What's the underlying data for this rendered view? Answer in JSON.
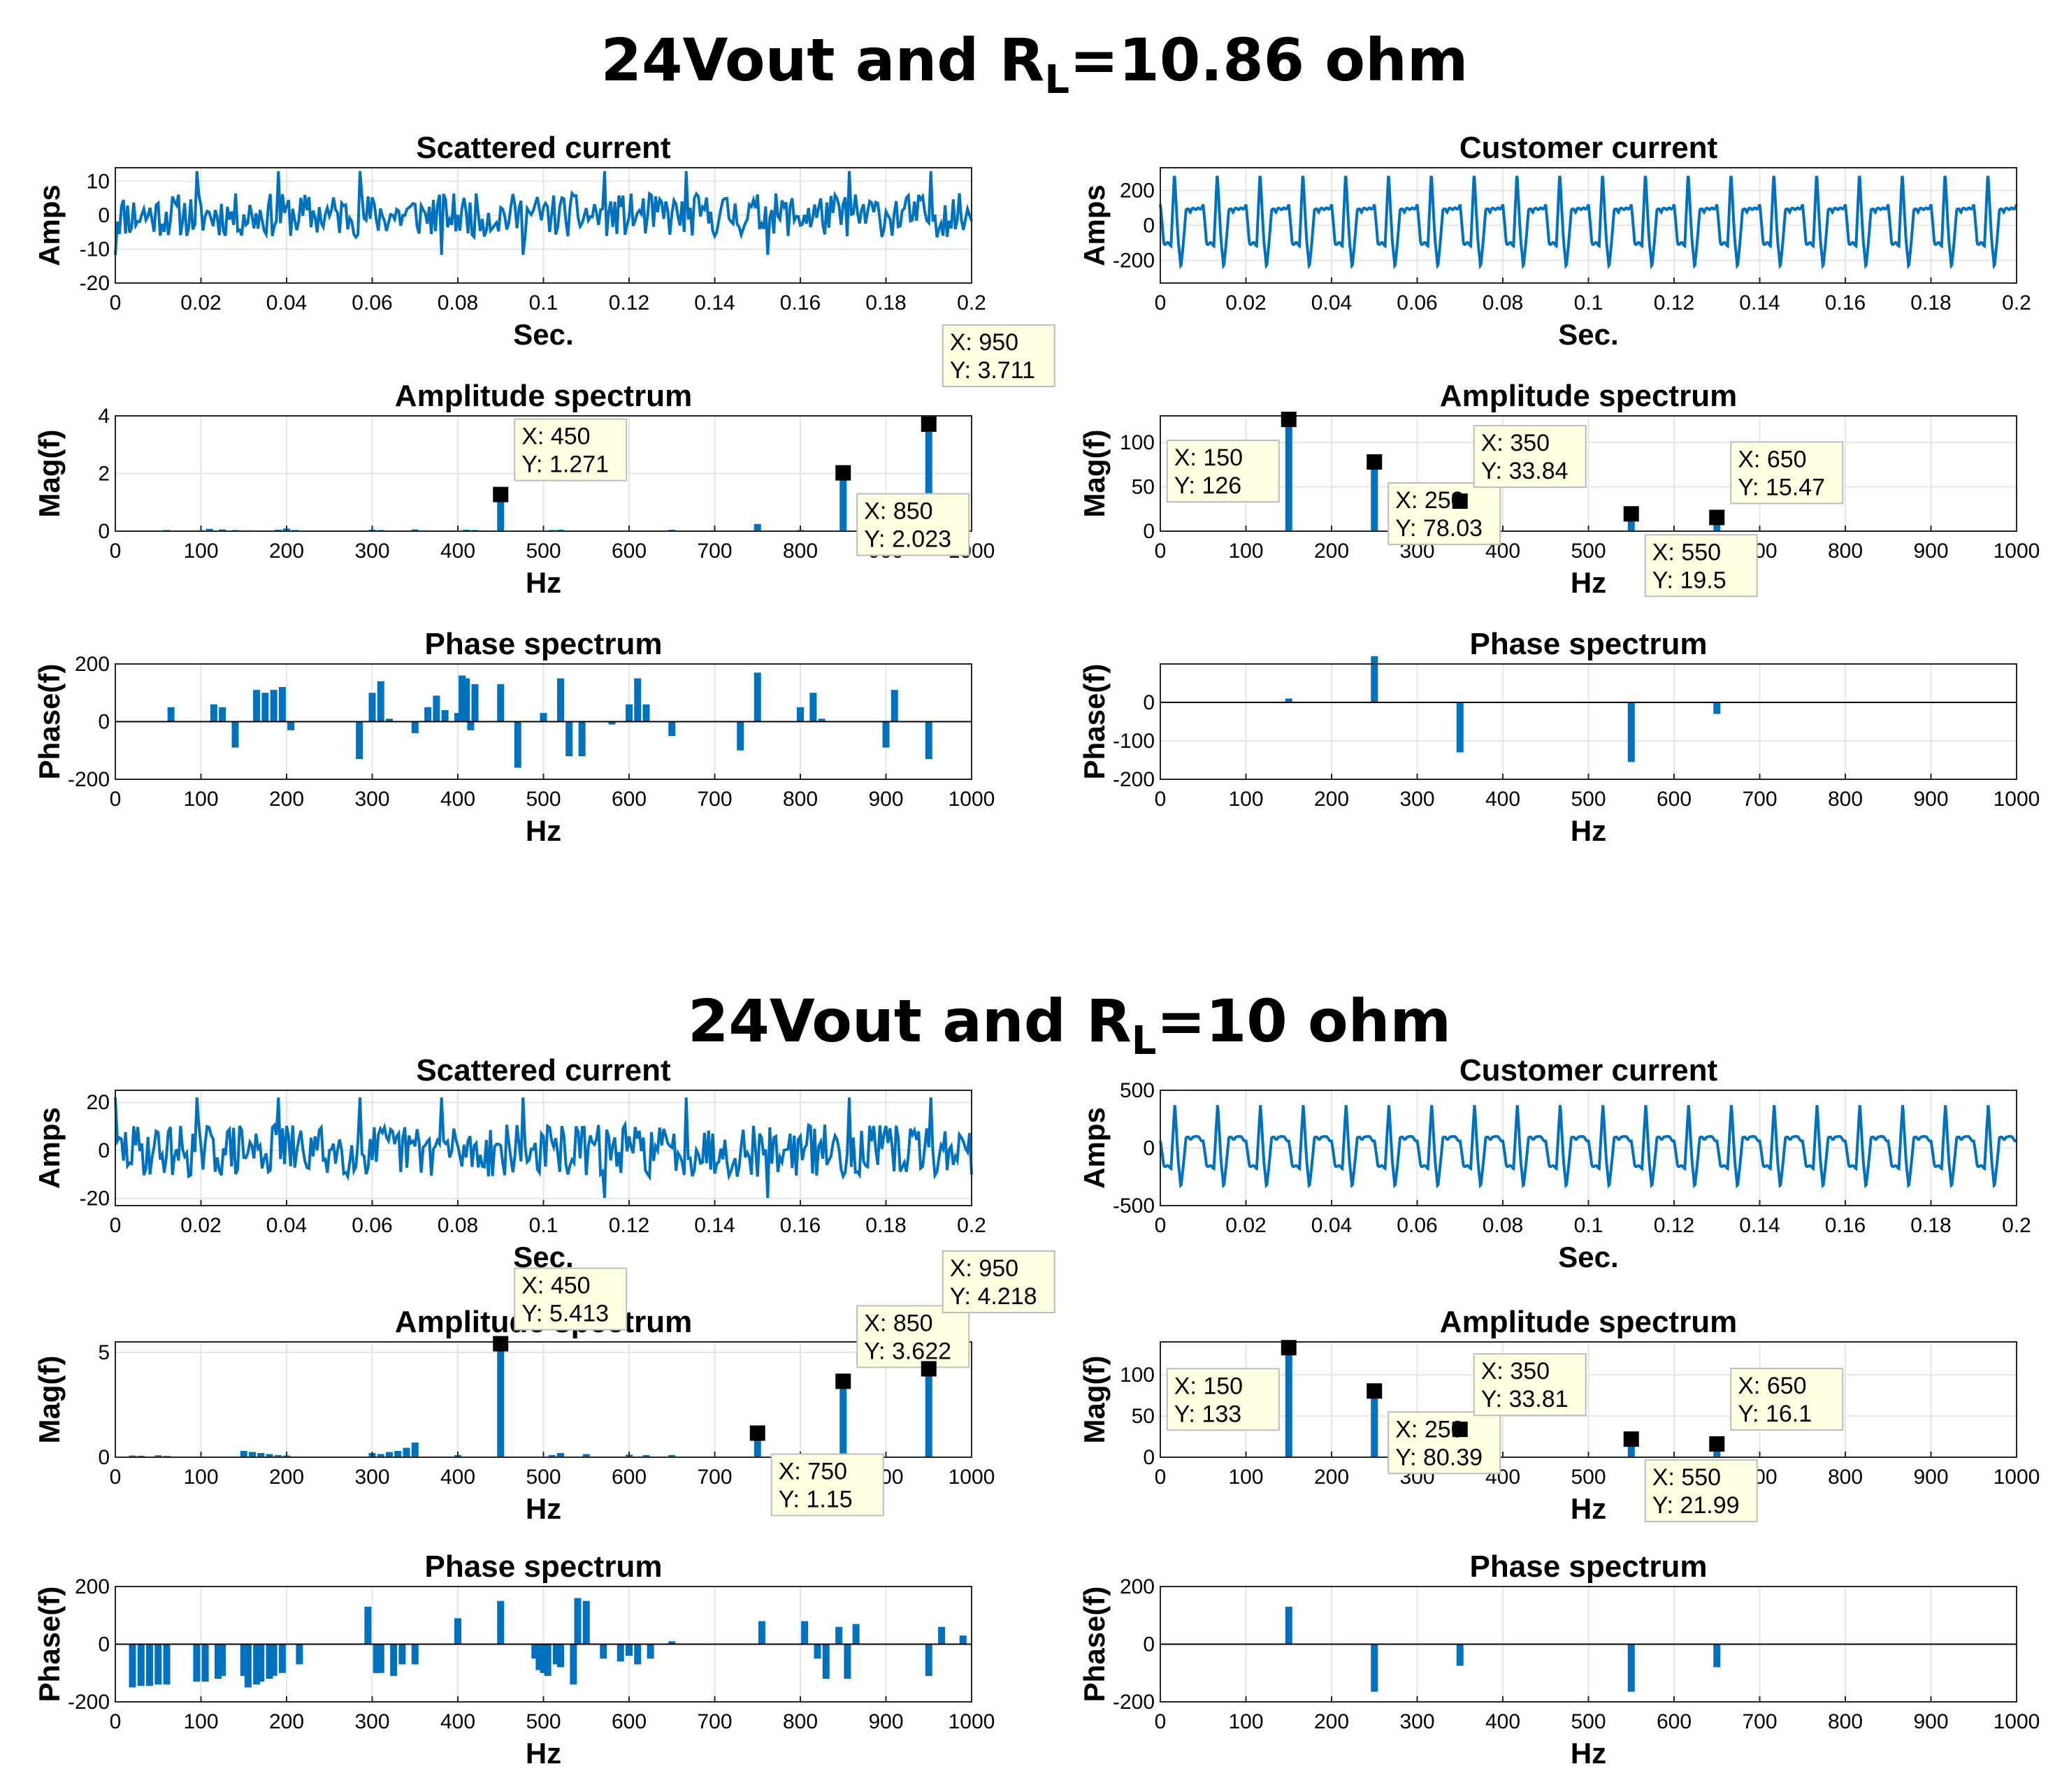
{
  "figure": {
    "colors": {
      "series": "#0072bd",
      "grid": "#e5e5e5",
      "tooltip_bg": "#ffffe1",
      "marker": "#000000"
    },
    "sections": [
      {
        "title_prefix": "24Vout and R",
        "title_sub": "L",
        "title_suffix": "=10.86 ohm",
        "panels": [
          {
            "title": "Scattered current",
            "ylabel": "Amps",
            "xlabel": "Sec.",
            "type": "line",
            "xlim": [
              0,
              0.2
            ],
            "ylim": [
              -20,
              14
            ],
            "xticks": [
              "0",
              "0.02",
              "0.04",
              "0.06",
              "0.08",
              "0.1",
              "0.12",
              "0.14",
              "0.16",
              "0.18",
              "0.2"
            ],
            "yticks": [
              "10",
              "0",
              "-10",
              "-20"
            ]
          },
          {
            "title": "Customer current",
            "ylabel": "Amps",
            "xlabel": "Sec.",
            "type": "line",
            "xlim": [
              0,
              0.2
            ],
            "ylim": [
              -330,
              330
            ],
            "xticks": [
              "0",
              "0.02",
              "0.04",
              "0.06",
              "0.08",
              "0.1",
              "0.12",
              "0.14",
              "0.16",
              "0.18",
              "0.2"
            ],
            "yticks": [
              "200",
              "0",
              "-200"
            ]
          },
          {
            "title": "Amplitude spectrum",
            "ylabel": "Mag(f)",
            "xlabel": "Hz",
            "type": "stem",
            "xlim": [
              0,
              1000
            ],
            "ylim": [
              0,
              4
            ],
            "xticks": [
              "0",
              "100",
              "200",
              "300",
              "400",
              "500",
              "600",
              "700",
              "800",
              "900",
              "1000"
            ],
            "yticks": [
              "4",
              "2",
              "0"
            ]
          },
          {
            "title": "Amplitude spectrum",
            "ylabel": "Mag(f)",
            "xlabel": "Hz",
            "type": "stem",
            "xlim": [
              0,
              1000
            ],
            "ylim": [
              0,
              130
            ],
            "xticks": [
              "0",
              "100",
              "200",
              "300",
              "400",
              "500",
              "600",
              "700",
              "800",
              "900",
              "1000"
            ],
            "yticks": [
              "100",
              "50",
              "0"
            ]
          },
          {
            "title": "Phase spectrum",
            "ylabel": "Phase(f)",
            "xlabel": "Hz",
            "type": "bar",
            "xlim": [
              0,
              1000
            ],
            "ylim": [
              -200,
              200
            ],
            "xticks": [
              "0",
              "100",
              "200",
              "300",
              "400",
              "500",
              "600",
              "700",
              "800",
              "900",
              "1000"
            ],
            "yticks": [
              "200",
              "0",
              "-200"
            ]
          },
          {
            "title": "Phase spectrum",
            "ylabel": "Phase(f)",
            "xlabel": "Hz",
            "type": "bar",
            "xlim": [
              0,
              1000
            ],
            "ylim": [
              -200,
              100
            ],
            "xticks": [
              "0",
              "100",
              "200",
              "300",
              "400",
              "500",
              "600",
              "700",
              "800",
              "900",
              "1000"
            ],
            "yticks": [
              "0",
              "-100",
              "-200"
            ]
          }
        ]
      },
      {
        "title_prefix": "24Vout and R",
        "title_sub": "L",
        "title_suffix": "=10 ohm",
        "panels": [
          {
            "title": "Scattered current",
            "ylabel": "Amps",
            "xlabel": "Sec.",
            "type": "line",
            "xlim": [
              0,
              0.2
            ],
            "ylim": [
              -23,
              25
            ],
            "xticks": [
              "0",
              "0.02",
              "0.04",
              "0.06",
              "0.08",
              "0.1",
              "0.12",
              "0.14",
              "0.16",
              "0.18",
              "0.2"
            ],
            "yticks": [
              "20",
              "0",
              "-20"
            ]
          },
          {
            "title": "Customer current",
            "ylabel": "Amps",
            "xlabel": "Sec.",
            "type": "line",
            "xlim": [
              0,
              0.2
            ],
            "ylim": [
              -500,
              500
            ],
            "xticks": [
              "0",
              "0.02",
              "0.04",
              "0.06",
              "0.08",
              "0.1",
              "0.12",
              "0.14",
              "0.16",
              "0.18",
              "0.2"
            ],
            "yticks": [
              "500",
              "0",
              "-500"
            ]
          },
          {
            "title": "Amplitude spectrum",
            "ylabel": "Mag(f)",
            "xlabel": "Hz",
            "type": "stem",
            "xlim": [
              0,
              1000
            ],
            "ylim": [
              0,
              5.5
            ],
            "xticks": [
              "0",
              "100",
              "200",
              "300",
              "400",
              "500",
              "600",
              "700",
              "800",
              "900",
              "1000"
            ],
            "yticks": [
              "5",
              "0"
            ]
          },
          {
            "title": "Amplitude spectrum",
            "ylabel": "Mag(f)",
            "xlabel": "Hz",
            "type": "stem",
            "xlim": [
              0,
              1000
            ],
            "ylim": [
              0,
              140
            ],
            "xticks": [
              "0",
              "100",
              "200",
              "300",
              "400",
              "500",
              "600",
              "700",
              "800",
              "900",
              "1000"
            ],
            "yticks": [
              "100",
              "50",
              "0"
            ]
          },
          {
            "title": "Phase spectrum",
            "ylabel": "Phase(f)",
            "xlabel": "Hz",
            "type": "bar",
            "xlim": [
              0,
              1000
            ],
            "ylim": [
              -200,
              200
            ],
            "xticks": [
              "0",
              "100",
              "200",
              "300",
              "400",
              "500",
              "600",
              "700",
              "800",
              "900",
              "1000"
            ],
            "yticks": [
              "200",
              "0",
              "-200"
            ]
          },
          {
            "title": "Phase spectrum",
            "ylabel": "Phase(f)",
            "xlabel": "Hz",
            "type": "bar",
            "xlim": [
              0,
              1000
            ],
            "ylim": [
              -200,
              200
            ],
            "xticks": [
              "0",
              "100",
              "200",
              "300",
              "400",
              "500",
              "600",
              "700",
              "800",
              "900",
              "1000"
            ],
            "yticks": [
              "200",
              "0",
              "-200"
            ]
          }
        ]
      }
    ]
  },
  "chart_data": [
    {
      "section": 0,
      "panel": 0,
      "type": "line",
      "waveform": {
        "kind": "noise",
        "samples": 420,
        "amplitude": 6.5,
        "seed": 11,
        "xmax": 0.2,
        "spike_every": 40,
        "spike_amplitude": 13
      }
    },
    {
      "section": 0,
      "panel": 1,
      "type": "line",
      "waveform": {
        "kind": "periodic",
        "period": 0.01,
        "samples": 1600,
        "xmax": 0.2,
        "shape": [
          [
            0,
            120
          ],
          [
            0.08,
            -100
          ],
          [
            0.25,
            -110
          ],
          [
            0.33,
            300
          ],
          [
            0.42,
            -90
          ],
          [
            0.48,
            -250
          ],
          [
            0.6,
            80
          ],
          [
            0.66,
            100
          ],
          [
            0.7,
            80
          ],
          [
            0.8,
            100
          ],
          [
            0.92,
            90
          ],
          [
            1.0,
            120
          ]
        ]
      }
    },
    {
      "section": 0,
      "panel": 2,
      "type": "stem",
      "x": [
        60,
        100,
        110,
        125,
        140,
        155,
        190,
        200,
        210,
        300,
        310,
        350,
        360,
        410,
        420,
        450,
        510,
        520,
        650,
        700,
        750,
        800,
        850,
        950
      ],
      "y": [
        0.04,
        0.03,
        0.08,
        0.06,
        0.04,
        0.03,
        0.05,
        0.09,
        0.04,
        0.05,
        0.04,
        0.06,
        0.03,
        0.05,
        0.04,
        1.271,
        0.04,
        0.05,
        0.05,
        0.03,
        0.25,
        0.04,
        2.023,
        3.711
      ],
      "datatips": [
        {
          "x": 450,
          "y": 1.271,
          "label_x": "X: 450",
          "label_y": "Y: 1.271"
        },
        {
          "x": 850,
          "y": 2.023,
          "label_x": "X: 850",
          "label_y": "Y: 2.023"
        },
        {
          "x": 950,
          "y": 3.711,
          "label_x": "X: 950",
          "label_y": "Y: 3.711"
        }
      ]
    },
    {
      "section": 0,
      "panel": 3,
      "type": "stem",
      "x": [
        150,
        250,
        350,
        550,
        650
      ],
      "y": [
        126,
        78.03,
        33.84,
        19.5,
        15.47
      ],
      "datatips": [
        {
          "x": 150,
          "y": 126,
          "label_x": "X: 150",
          "label_y": "Y: 126"
        },
        {
          "x": 250,
          "y": 78.03,
          "label_x": "X: 250",
          "label_y": "Y: 78.03"
        },
        {
          "x": 350,
          "y": 33.84,
          "label_x": "X: 350",
          "label_y": "Y: 33.84"
        },
        {
          "x": 550,
          "y": 19.5,
          "label_x": "X: 550",
          "label_y": "Y: 19.5"
        },
        {
          "x": 650,
          "y": 15.47,
          "label_x": "X: 650",
          "label_y": "Y: 15.47"
        }
      ]
    },
    {
      "section": 0,
      "panel": 4,
      "type": "bar",
      "x": [
        65,
        115,
        125,
        140,
        165,
        175,
        185,
        195,
        205,
        285,
        300,
        310,
        320,
        350,
        365,
        375,
        385,
        400,
        405,
        410,
        415,
        420,
        450,
        470,
        500,
        520,
        530,
        545,
        580,
        600,
        610,
        620,
        650,
        730,
        750,
        800,
        815,
        825,
        900,
        910,
        950
      ],
      "y": [
        50,
        60,
        50,
        -90,
        110,
        100,
        110,
        120,
        -30,
        -130,
        100,
        140,
        10,
        -40,
        50,
        90,
        40,
        30,
        160,
        150,
        -30,
        130,
        130,
        -160,
        30,
        150,
        -120,
        -120,
        -10,
        60,
        150,
        60,
        -50,
        -100,
        170,
        50,
        100,
        10,
        -90,
        110,
        -130
      ]
    },
    {
      "section": 0,
      "panel": 5,
      "type": "bar",
      "x": [
        150,
        250,
        350,
        550,
        650
      ],
      "y": [
        10,
        120,
        -130,
        -155,
        -30
      ]
    },
    {
      "section": 1,
      "panel": 0,
      "type": "line",
      "waveform": {
        "kind": "noise",
        "samples": 420,
        "amplitude": 11,
        "seed": 29,
        "xmax": 0.2,
        "spike_every": 40,
        "spike_amplitude": 22
      }
    },
    {
      "section": 1,
      "panel": 1,
      "type": "line",
      "waveform": {
        "kind": "periodic",
        "period": 0.01,
        "samples": 1600,
        "xmax": 0.2,
        "shape": [
          [
            0,
            60
          ],
          [
            0.08,
            -150
          ],
          [
            0.25,
            -170
          ],
          [
            0.34,
            380
          ],
          [
            0.42,
            -120
          ],
          [
            0.48,
            -350
          ],
          [
            0.6,
            80
          ],
          [
            0.66,
            100
          ],
          [
            0.72,
            70
          ],
          [
            0.82,
            110
          ],
          [
            0.92,
            80
          ],
          [
            1.0,
            60
          ]
        ]
      }
    },
    {
      "section": 1,
      "panel": 2,
      "type": "stem",
      "x": [
        20,
        30,
        50,
        60,
        150,
        160,
        170,
        180,
        190,
        200,
        300,
        310,
        320,
        330,
        340,
        350,
        400,
        450,
        510,
        520,
        550,
        600,
        620,
        650,
        750,
        850,
        950
      ],
      "y": [
        0.08,
        0.07,
        0.09,
        0.06,
        0.3,
        0.25,
        0.2,
        0.15,
        0.1,
        0.08,
        0.2,
        0.15,
        0.25,
        0.3,
        0.45,
        0.7,
        0.1,
        5.413,
        0.1,
        0.2,
        0.15,
        0.12,
        0.1,
        0.1,
        1.15,
        3.622,
        4.218
      ],
      "datatips": [
        {
          "x": 450,
          "y": 5.413,
          "label_x": "X: 450",
          "label_y": "Y: 5.413"
        },
        {
          "x": 750,
          "y": 1.15,
          "label_x": "X: 750",
          "label_y": "Y: 1.15"
        },
        {
          "x": 850,
          "y": 3.622,
          "label_x": "X: 850",
          "label_y": "Y: 3.622"
        },
        {
          "x": 950,
          "y": 4.218,
          "label_x": "X: 950",
          "label_y": "Y: 4.218"
        }
      ]
    },
    {
      "section": 1,
      "panel": 3,
      "type": "stem",
      "x": [
        150,
        250,
        350,
        550,
        650
      ],
      "y": [
        133,
        80.39,
        33.81,
        21.99,
        16.1
      ],
      "datatips": [
        {
          "x": 150,
          "y": 133,
          "label_x": "X: 150",
          "label_y": "Y: 133"
        },
        {
          "x": 250,
          "y": 80.39,
          "label_x": "X: 250",
          "label_y": "Y: 80.39"
        },
        {
          "x": 350,
          "y": 33.81,
          "label_x": "X: 350",
          "label_y": "Y: 33.81"
        },
        {
          "x": 550,
          "y": 21.99,
          "label_x": "X: 550",
          "label_y": "Y: 21.99"
        },
        {
          "x": 650,
          "y": 16.1,
          "label_x": "X: 650",
          "label_y": "Y: 16.1"
        }
      ]
    },
    {
      "section": 1,
      "panel": 4,
      "type": "bar",
      "x": [
        20,
        30,
        40,
        50,
        60,
        95,
        105,
        120,
        125,
        150,
        155,
        165,
        170,
        180,
        185,
        195,
        215,
        295,
        305,
        310,
        325,
        335,
        350,
        400,
        450,
        490,
        495,
        500,
        505,
        515,
        520,
        535,
        540,
        550,
        570,
        590,
        600,
        610,
        625,
        650,
        755,
        805,
        820,
        830,
        845,
        855,
        865,
        950,
        965,
        990
      ],
      "y": [
        -150,
        -145,
        -145,
        -140,
        -140,
        -130,
        -130,
        -120,
        -110,
        -110,
        -150,
        -140,
        -130,
        -120,
        -110,
        -100,
        -70,
        130,
        -100,
        -100,
        -110,
        -70,
        -70,
        90,
        150,
        -50,
        -90,
        -100,
        -110,
        -70,
        -80,
        -140,
        160,
        150,
        -50,
        -60,
        -40,
        -70,
        -50,
        10,
        80,
        80,
        -50,
        -120,
        60,
        -120,
        70,
        -110,
        60,
        30
      ]
    },
    {
      "section": 1,
      "panel": 5,
      "type": "bar",
      "x": [
        150,
        250,
        350,
        550,
        650
      ],
      "y": [
        130,
        -165,
        -75,
        -165,
        -80
      ]
    }
  ]
}
